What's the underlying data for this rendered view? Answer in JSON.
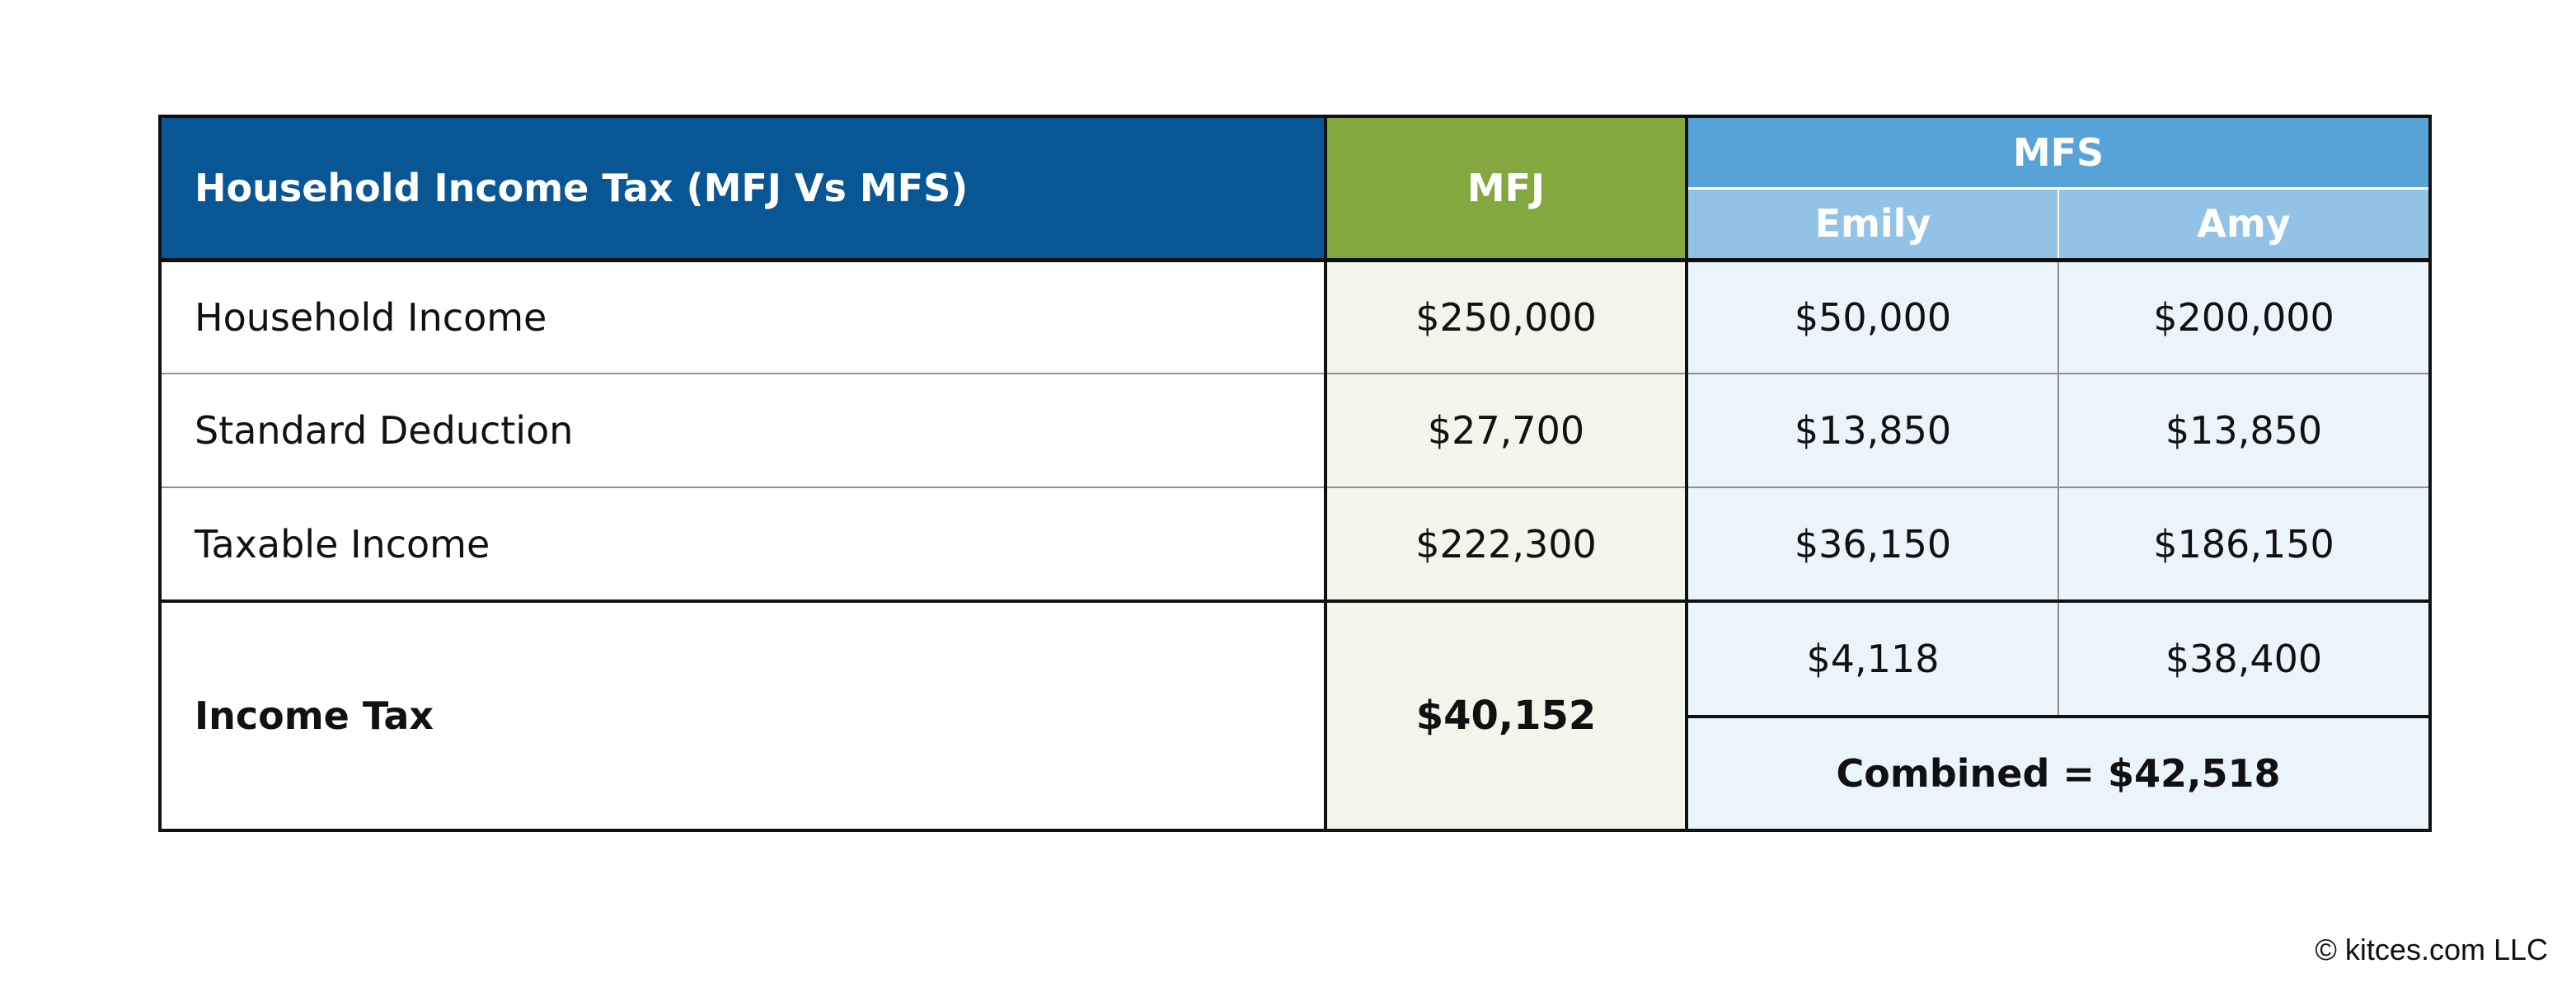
{
  "chart_data": {
    "type": "table",
    "title": "Household Income Tax (MFJ Vs MFS)",
    "columns": {
      "mfj": "MFJ",
      "mfs": "MFS",
      "mfs_people": [
        "Emily",
        "Amy"
      ]
    },
    "rows": [
      {
        "label": "Household Income",
        "mfj": "$250,000",
        "mfs": [
          "$50,000",
          "$200,000"
        ]
      },
      {
        "label": "Standard Deduction",
        "mfj": "$27,700",
        "mfs": [
          "$13,850",
          "$13,850"
        ]
      },
      {
        "label": "Taxable Income",
        "mfj": "$222,300",
        "mfs": [
          "$36,150",
          "$186,150"
        ]
      }
    ],
    "income_tax": {
      "label": "Income Tax",
      "mfj": "$40,152",
      "mfs": [
        "$4,118",
        "$38,400"
      ],
      "combined": "Combined = $42,518"
    },
    "colors": {
      "title_header": "#085694",
      "mfj_header": "#83a840",
      "mfs_header": "#57a3d8",
      "mfs_subheader": "#92c2e6",
      "mfj_cell": "#f1f5ea",
      "mfs_cell": "#ecf4fb"
    }
  },
  "footer": {
    "copyright": "© kitces.com LLC"
  }
}
